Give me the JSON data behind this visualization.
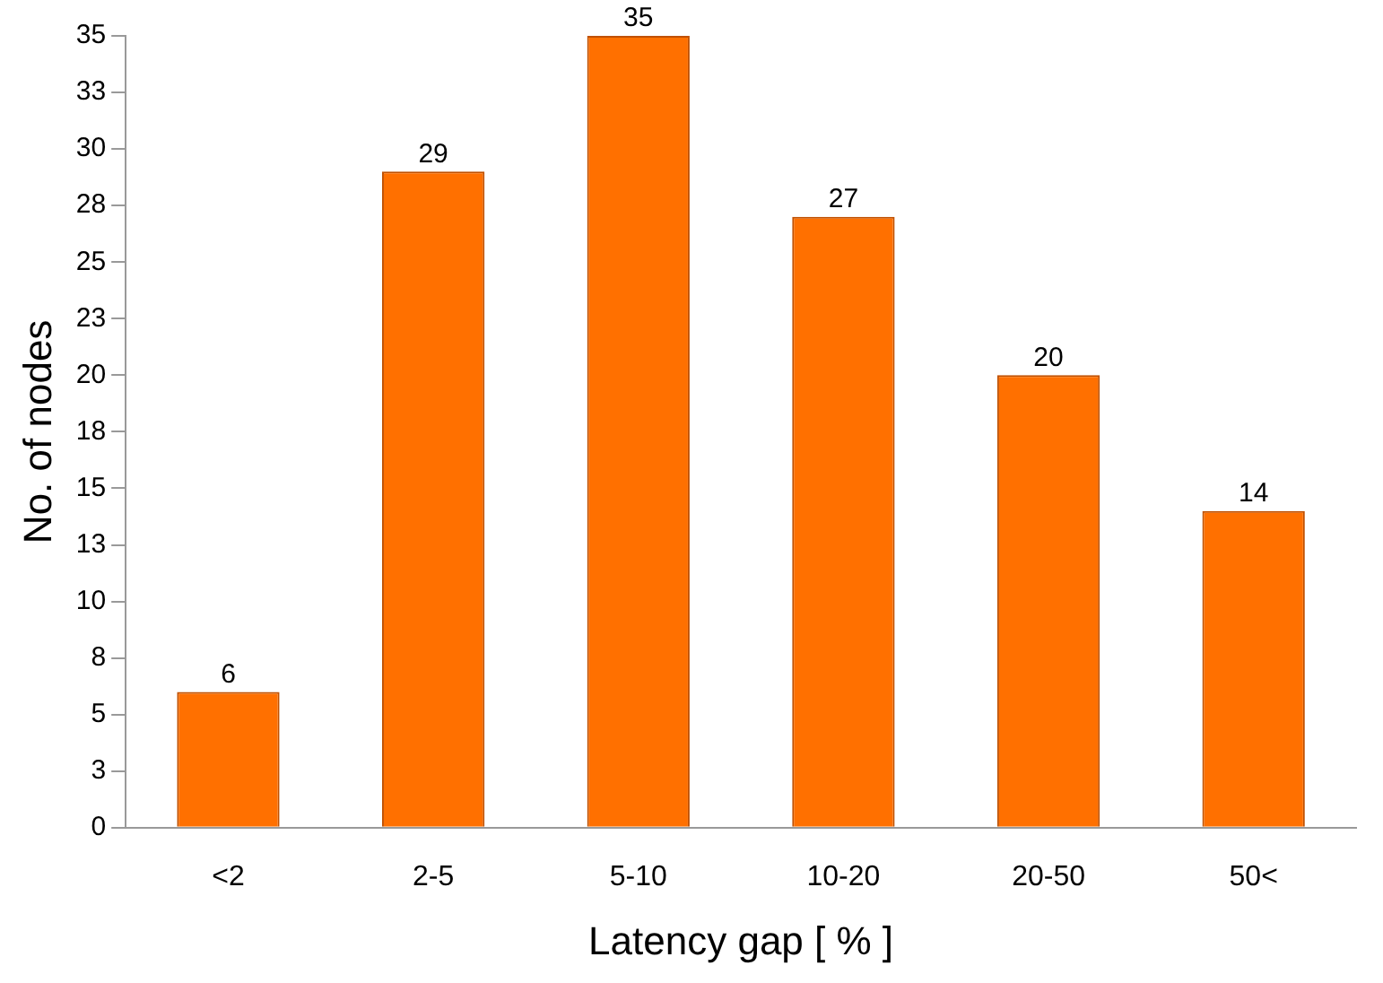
{
  "chart_data": {
    "type": "bar",
    "xlabel": "Latency gap [ % ]",
    "ylabel": "No. of nodes",
    "categories": [
      "<2",
      "2-5",
      "5-10",
      "10-20",
      "20-50",
      "50<"
    ],
    "values": [
      6,
      29,
      35,
      27,
      20,
      14
    ],
    "color": "#ff7000",
    "ylim": [
      0,
      35
    ],
    "yticks": [
      0,
      {
        "value": 2.5,
        "label": "3"
      },
      5,
      {
        "value": 7.5,
        "label": "8"
      },
      10,
      {
        "value": 12.5,
        "label": "13"
      },
      15,
      {
        "value": 17.5,
        "label": "18"
      },
      20,
      {
        "value": 22.5,
        "label": "23"
      },
      25,
      {
        "value": 27.5,
        "label": "28"
      },
      30,
      {
        "value": 32.5,
        "label": "33"
      },
      35
    ],
    "grid": false,
    "legend": false,
    "data_labels": true
  }
}
